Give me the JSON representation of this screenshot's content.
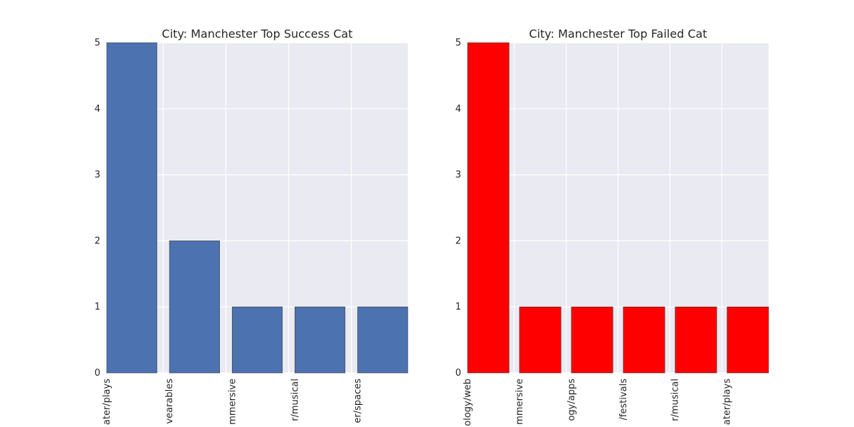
{
  "chart_data": [
    {
      "type": "bar",
      "title": "City: Manchester Top Success Cat",
      "xlabel": "",
      "ylabel": "",
      "categories": [
        "Theater/plays",
        "Technology/wearables",
        "Theater/immersive",
        "Theater/musical",
        "Theater/spaces"
      ],
      "category_labels_visible": [
        "ater/plays",
        "vearables",
        "mmersive",
        "r/musical",
        "er/spaces"
      ],
      "values": [
        5,
        2,
        1,
        1,
        1
      ],
      "ylim": [
        0,
        5
      ],
      "yticks": [
        0,
        1,
        2,
        3,
        4,
        5
      ],
      "grid": true,
      "bar_color": "#4c72b0"
    },
    {
      "type": "bar",
      "title": "City: Manchester Top Failed Cat",
      "xlabel": "",
      "ylabel": "",
      "categories": [
        "Technology/web",
        "Theater/immersive",
        "Technology/apps",
        "Music/festivals",
        "Theater/musical",
        "Theater/plays"
      ],
      "category_labels_visible": [
        "ology/web",
        "mmersive",
        "ogy/apps",
        "/festivals",
        "r/musical",
        "ater/plays"
      ],
      "values": [
        5,
        1,
        1,
        1,
        1,
        1
      ],
      "ylim": [
        0,
        5
      ],
      "yticks": [
        0,
        1,
        2,
        3,
        4,
        5
      ],
      "grid": true,
      "bar_color": "#ff0000"
    }
  ],
  "style": {
    "plot_background": "#eaeaf2",
    "grid_color": "#ffffff",
    "text_color": "#262626",
    "bar_edge_color": "#3a3a3a"
  }
}
